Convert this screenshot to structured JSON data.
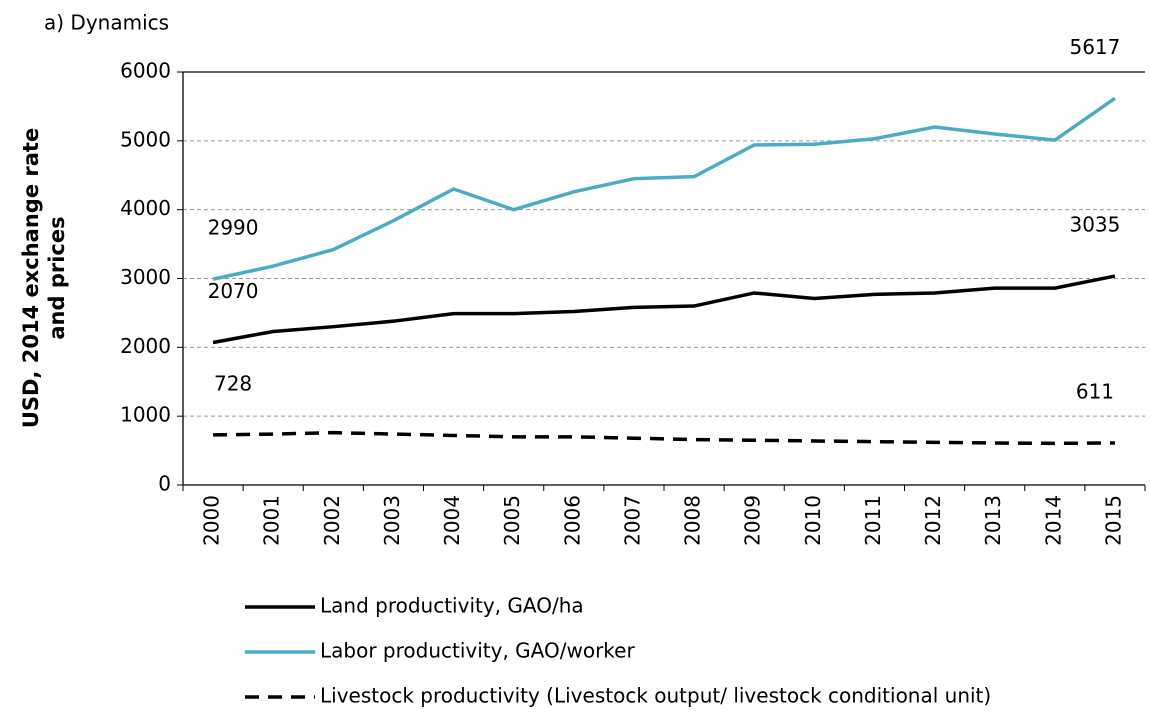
{
  "chart_data": {
    "type": "line",
    "title": "a) Dynamics",
    "ylabel": [
      "USD, 2014 exchange rate",
      "and prices"
    ],
    "categories": [
      "2000",
      "2001",
      "2002",
      "2003",
      "2004",
      "2005",
      "2006",
      "2007",
      "2008",
      "2009",
      "2010",
      "2011",
      "2012",
      "2013",
      "2014",
      "2015"
    ],
    "ylim": [
      0,
      6000
    ],
    "yticks": [
      0,
      1000,
      2000,
      3000,
      4000,
      5000,
      6000
    ],
    "grid": true,
    "legend": "bottom",
    "series": [
      {
        "name": "Land productivity, GAO/ha",
        "color": "#000000",
        "line_style": "solid",
        "values": [
          2070,
          2230,
          2300,
          2380,
          2490,
          2490,
          2520,
          2580,
          2600,
          2790,
          2710,
          2770,
          2790,
          2860,
          2860,
          3035
        ],
        "value_labels": [
          "2070",
          null,
          null,
          null,
          null,
          null,
          null,
          null,
          null,
          null,
          null,
          null,
          null,
          null,
          null,
          "3035"
        ]
      },
      {
        "name": "Labor productivity, GAO/worker",
        "color": "#4bacc6",
        "line_style": "solid",
        "values": [
          2990,
          3180,
          3420,
          3840,
          4300,
          4000,
          4260,
          4450,
          4480,
          4940,
          4950,
          5030,
          5200,
          5100,
          5010,
          5617
        ],
        "value_labels": [
          "2990",
          null,
          null,
          null,
          null,
          null,
          null,
          null,
          null,
          null,
          null,
          null,
          null,
          null,
          null,
          "5617"
        ]
      },
      {
        "name": "Livestock productivity (Livestock output/ livestock conditional unit)",
        "color": "#000000",
        "line_style": "dashed",
        "values": [
          728,
          740,
          760,
          740,
          720,
          700,
          700,
          680,
          660,
          650,
          640,
          630,
          620,
          610,
          605,
          611
        ],
        "value_labels": [
          "728",
          null,
          null,
          null,
          null,
          null,
          null,
          null,
          null,
          null,
          null,
          null,
          null,
          null,
          null,
          "611"
        ]
      }
    ]
  }
}
